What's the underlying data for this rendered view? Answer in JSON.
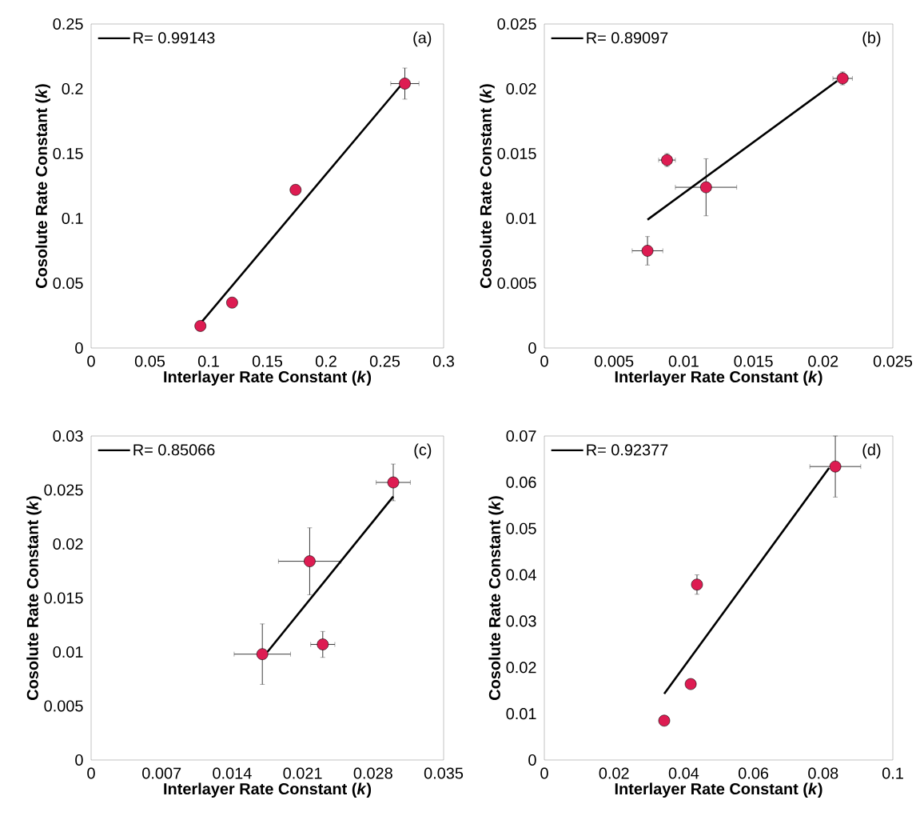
{
  "chart_data": [
    {
      "type": "scatter",
      "xlabel": "Interlayer Rate Constant (*k*)",
      "ylabel": "Cosolute Rate Constant (*k*)",
      "annotations": [
        "(a)"
      ],
      "legend": "top left",
      "xlim": [
        0,
        0.3
      ],
      "xticks": [
        0,
        0.05,
        0.1,
        0.15,
        0.2,
        0.25,
        0.3
      ],
      "ylim": [
        0,
        0.25
      ],
      "yticks": [
        0,
        0.05,
        0.1,
        0.15,
        0.2,
        0.25
      ],
      "series": [
        {
          "marker": "circle",
          "color": "#dd1c52",
          "x": [
            0.093,
            0.12,
            0.174,
            0.267
          ],
          "values": [
            0.017,
            0.035,
            0.122,
            0.204
          ],
          "errors": [
            null,
            null,
            0.003,
            0.012
          ],
          "xerrors": [
            null,
            null,
            null,
            0.012
          ]
        },
        {
          "type": "line",
          "name": "R= 0.99143",
          "marker": "none",
          "line_style": "solid",
          "color": "#000000",
          "x": [
            0.094,
            0.263
          ],
          "values": [
            0.02,
            0.202
          ]
        }
      ]
    },
    {
      "type": "scatter",
      "xlabel": "Interlayer Rate Constant (*k*)",
      "ylabel": "Cosolute Rate Constant (*k*)",
      "annotations": [
        "(b)"
      ],
      "legend": "top left",
      "xlim": [
        0,
        0.025
      ],
      "xticks": [
        0,
        0.005,
        0.01,
        0.015,
        0.02,
        0.025
      ],
      "ylim": [
        0,
        0.025
      ],
      "yticks": [
        0,
        0.005,
        0.01,
        0.015,
        0.02,
        0.025
      ],
      "series": [
        {
          "marker": "circle",
          "color": "#dd1c52",
          "x": [
            0.0074,
            0.0088,
            0.0116,
            0.0214
          ],
          "values": [
            0.0075,
            0.0145,
            0.0124,
            0.0208
          ],
          "errors": [
            0.0011,
            0.0005,
            0.0022,
            0.0005
          ],
          "xerrors": [
            0.0011,
            0.0006,
            0.0022,
            0.0007
          ]
        },
        {
          "type": "line",
          "name": "R= 0.89097",
          "marker": "none",
          "line_style": "solid",
          "color": "#000000",
          "x": [
            0.0074,
            0.021
          ],
          "values": [
            0.0099,
            0.0206
          ]
        }
      ]
    },
    {
      "type": "scatter",
      "xlabel": "Interlayer Rate Constant (*k*)",
      "ylabel": "Cosolute Rate Constant (*k*)",
      "annotations": [
        "(c)"
      ],
      "legend": "top left",
      "xlim": [
        0,
        0.035
      ],
      "xticks": [
        0,
        0.007,
        0.014,
        0.021,
        0.028,
        0.035
      ],
      "ylim": [
        0,
        0.03
      ],
      "yticks": [
        0,
        0.005,
        0.01,
        0.015,
        0.02,
        0.025,
        0.03
      ],
      "series": [
        {
          "marker": "circle",
          "color": "#dd1c52",
          "x": [
            0.017,
            0.0217,
            0.023,
            0.03
          ],
          "values": [
            0.0098,
            0.0184,
            0.0107,
            0.0257
          ],
          "errors": [
            0.0028,
            0.0031,
            0.0012,
            0.0017
          ],
          "xerrors": [
            0.0028,
            0.0031,
            0.0012,
            0.0017
          ]
        },
        {
          "type": "line",
          "name": "R= 0.85066",
          "marker": "none",
          "line_style": "solid",
          "color": "#000000",
          "x": [
            0.0175,
            0.03
          ],
          "values": [
            0.01,
            0.0244
          ]
        }
      ]
    },
    {
      "type": "scatter",
      "xlabel": "Interlayer Rate Constant (*k*)",
      "ylabel": "Cosolute Rate Constant (*k*)",
      "annotations": [
        "(d)"
      ],
      "legend": "top left",
      "xlim": [
        0,
        0.1
      ],
      "xticks": [
        0,
        0.02,
        0.04,
        0.06,
        0.08,
        0.1
      ],
      "ylim": [
        0,
        0.07
      ],
      "yticks": [
        0,
        0.01,
        0.02,
        0.03,
        0.04,
        0.05,
        0.06,
        0.07
      ],
      "series": [
        {
          "marker": "circle",
          "color": "#dd1c52",
          "x": [
            0.0344,
            0.042,
            0.0438,
            0.0835
          ],
          "values": [
            0.0085,
            0.0164,
            0.0379,
            0.0634
          ],
          "errors": [
            null,
            null,
            0.0021,
            0.0066
          ],
          "xerrors": [
            null,
            null,
            null,
            0.0073
          ]
        },
        {
          "type": "line",
          "name": "R= 0.92377",
          "marker": "none",
          "line_style": "solid",
          "color": "#000000",
          "x": [
            0.0344,
            0.0817
          ],
          "values": [
            0.0143,
            0.0631
          ]
        }
      ]
    }
  ]
}
